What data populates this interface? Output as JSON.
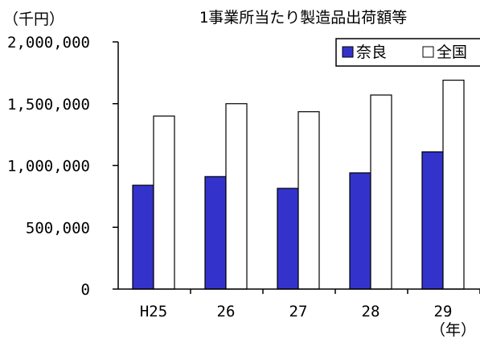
{
  "chart_data": {
    "type": "bar",
    "title": "1事業所当たり製造品出荷額等",
    "unit_label": "（千円）",
    "xunit_label": "（年）",
    "categories": [
      "H25",
      "26",
      "27",
      "28",
      "29"
    ],
    "series": [
      {
        "name": "奈良",
        "values": [
          840000,
          910000,
          815000,
          940000,
          1110000
        ],
        "color": "#3333cc"
      },
      {
        "name": "全国",
        "values": [
          1400000,
          1500000,
          1435000,
          1570000,
          1690000
        ],
        "color": "#ffffff"
      }
    ],
    "yticks": [
      "0",
      "500,000",
      "1,000,000",
      "1,500,000",
      "2,000,000"
    ],
    "ylim": [
      0,
      2000000
    ],
    "grid": false,
    "legend": "top-right"
  }
}
